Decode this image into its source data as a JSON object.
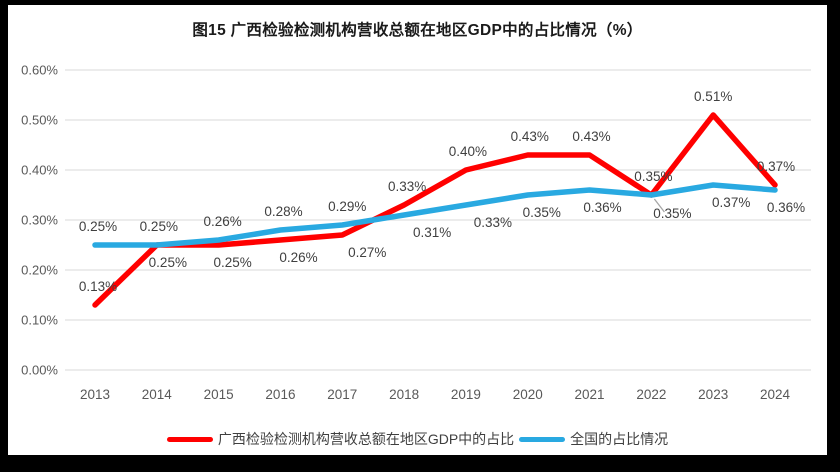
{
  "window": {
    "background": "#000000",
    "panel_background": "#FFFFFF"
  },
  "chart_data": {
    "type": "line",
    "title": "图15 广西检验检测机构营收总额在地区GDP中的占比情况（%）",
    "categories": [
      "2013",
      "2014",
      "2015",
      "2016",
      "2017",
      "2018",
      "2019",
      "2020",
      "2021",
      "2022",
      "2023",
      "2024"
    ],
    "y_ticks": [
      "0.00%",
      "0.10%",
      "0.20%",
      "0.30%",
      "0.40%",
      "0.50%",
      "0.60%"
    ],
    "ylim": [
      0,
      0.6
    ],
    "y_tick_step": 0.1,
    "grid": true,
    "legend_position": "bottom",
    "colors": {
      "gridline": "#D9D9D9",
      "axis_text": "#595959",
      "data_label_text": "#404040",
      "leader_line": "#A6A6A6"
    },
    "series": [
      {
        "name": "广西检验检测机构营收总额在地区GDP中的占比",
        "color": "#FF0000",
        "values": [
          0.13,
          0.25,
          0.25,
          0.26,
          0.27,
          0.33,
          0.4,
          0.43,
          0.43,
          0.35,
          0.51,
          0.37
        ],
        "labels": [
          "0.13%",
          "0.25%",
          "0.25%",
          "0.26%",
          "0.27%",
          "0.33%",
          "0.40%",
          "0.43%",
          "0.43%",
          "0.35%",
          "0.51%",
          "0.37%"
        ],
        "label_pos": [
          "above",
          "below",
          "below",
          "below",
          "below",
          "above",
          "above",
          "above",
          "above",
          "above",
          "above",
          "above"
        ],
        "label_dx": [
          3,
          11,
          14,
          18,
          25,
          3,
          2,
          2,
          2,
          2,
          0,
          1
        ]
      },
      {
        "name": "全国的占比情况",
        "color": "#29A9E1",
        "values": [
          0.25,
          0.25,
          0.26,
          0.28,
          0.29,
          0.31,
          0.33,
          0.35,
          0.36,
          0.35,
          0.37,
          0.36
        ],
        "labels": [
          "0.25%",
          "0.25%",
          "0.26%",
          "0.28%",
          "0.29%",
          "0.31%",
          "0.33%",
          "0.35%",
          "0.36%",
          "0.35%",
          "0.37%",
          "0.36%"
        ],
        "label_pos": [
          "above",
          "above",
          "above",
          "above",
          "above",
          "below",
          "below",
          "below",
          "below",
          "leader",
          "below",
          "below"
        ],
        "label_dx": [
          3,
          2,
          4,
          3,
          5,
          28,
          27,
          14,
          13,
          21,
          18,
          11
        ]
      }
    ]
  }
}
